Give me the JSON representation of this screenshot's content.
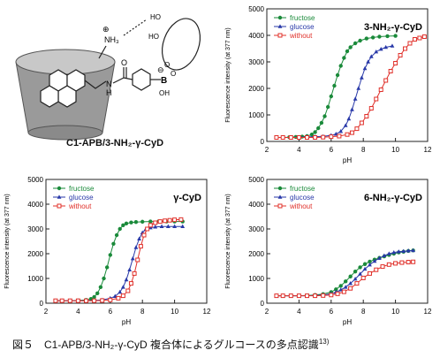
{
  "caption": {
    "text": "図５　C1-APB/3-NH₂-γ-CyD 複合体によるグルコースの多点認識",
    "ref": "13)"
  },
  "molecule": {
    "caption": "C1-APB/3-NH₂-γ-CyD",
    "labels": {
      "ammonium": "NH₃",
      "plus": "⊕",
      "minus": "⊖",
      "ho1": "HO",
      "ho2": "HO",
      "o1": "O",
      "o2": "O",
      "boron": "B",
      "oh": "OH",
      "nh": "N",
      "h": "H",
      "carbonyl_o": "O"
    }
  },
  "colors": {
    "fructose": "#1a8a3a",
    "glucose": "#2838a8",
    "without": "#e0302a"
  },
  "chart_data": [
    {
      "type": "line",
      "title": "3-NH₂-γ-CyD",
      "xlabel": "pH",
      "ylabel": "Fluorescence intensity (at 377 nm)",
      "xlim": [
        2,
        12
      ],
      "ylim": [
        0,
        5000
      ],
      "xticks": [
        2,
        4,
        6,
        8,
        10,
        12
      ],
      "yticks": [
        0,
        1000,
        2000,
        3000,
        4000,
        5000
      ],
      "legend": "top-left",
      "series": [
        {
          "name": "fructose",
          "marker": "circle",
          "x": [
            2.6,
            3.0,
            3.4,
            3.8,
            4.2,
            4.5,
            4.8,
            5.0,
            5.2,
            5.4,
            5.6,
            5.8,
            6.0,
            6.2,
            6.4,
            6.6,
            6.8,
            7.0,
            7.2,
            7.5,
            7.8,
            8.2,
            8.6,
            9.0,
            9.5,
            10.0
          ],
          "y": [
            150,
            150,
            160,
            170,
            180,
            200,
            260,
            350,
            500,
            700,
            950,
            1300,
            1700,
            2100,
            2500,
            2850,
            3150,
            3400,
            3550,
            3700,
            3800,
            3880,
            3920,
            3950,
            3970,
            3980
          ]
        },
        {
          "name": "glucose",
          "marker": "triangle",
          "x": [
            2.6,
            3.0,
            3.5,
            4.0,
            4.5,
            5.0,
            5.5,
            6.0,
            6.3,
            6.6,
            6.9,
            7.1,
            7.3,
            7.5,
            7.7,
            7.9,
            8.1,
            8.3,
            8.5,
            8.8,
            9.1,
            9.4,
            9.8
          ],
          "y": [
            150,
            150,
            150,
            160,
            170,
            180,
            190,
            230,
            280,
            380,
            600,
            850,
            1200,
            1600,
            2000,
            2400,
            2750,
            3000,
            3200,
            3380,
            3480,
            3550,
            3600
          ]
        },
        {
          "name": "without",
          "marker": "square",
          "x": [
            2.6,
            3.0,
            3.5,
            4.0,
            4.5,
            5.0,
            5.5,
            6.0,
            6.5,
            7.0,
            7.3,
            7.6,
            7.9,
            8.2,
            8.5,
            8.8,
            9.1,
            9.4,
            9.7,
            10.0,
            10.3,
            10.6,
            10.9,
            11.2,
            11.5,
            11.8
          ],
          "y": [
            150,
            150,
            150,
            150,
            150,
            150,
            160,
            180,
            200,
            260,
            330,
            480,
            700,
            950,
            1250,
            1600,
            1950,
            2300,
            2650,
            2950,
            3250,
            3500,
            3700,
            3850,
            3900,
            3950
          ]
        }
      ]
    },
    {
      "type": "line",
      "title": "γ-CyD",
      "xlabel": "pH",
      "ylabel": "Fluorescence intensity (at 377 nm)",
      "xlim": [
        2,
        12
      ],
      "ylim": [
        0,
        5000
      ],
      "xticks": [
        2,
        4,
        6,
        8,
        10,
        12
      ],
      "yticks": [
        0,
        1000,
        2000,
        3000,
        4000,
        5000
      ],
      "legend": "top-left",
      "series": [
        {
          "name": "fructose",
          "marker": "circle",
          "x": [
            2.6,
            3.0,
            3.5,
            4.0,
            4.5,
            4.8,
            5.0,
            5.2,
            5.4,
            5.6,
            5.8,
            6.0,
            6.2,
            6.4,
            6.6,
            6.8,
            7.0,
            7.3,
            7.6,
            8.0,
            8.5,
            9.0,
            9.5,
            10.0,
            10.5
          ],
          "y": [
            100,
            100,
            100,
            110,
            130,
            170,
            250,
            400,
            650,
            1000,
            1450,
            1950,
            2400,
            2750,
            3000,
            3150,
            3220,
            3260,
            3280,
            3290,
            3300,
            3300,
            3300,
            3300,
            3300
          ]
        },
        {
          "name": "glucose",
          "marker": "triangle",
          "x": [
            2.6,
            3.0,
            3.5,
            4.0,
            4.5,
            5.0,
            5.5,
            6.0,
            6.3,
            6.6,
            6.8,
            7.0,
            7.2,
            7.4,
            7.6,
            7.8,
            8.0,
            8.2,
            8.5,
            8.8,
            9.2,
            9.6,
            10.0,
            10.5
          ],
          "y": [
            100,
            100,
            100,
            100,
            100,
            110,
            130,
            200,
            280,
            450,
            650,
            950,
            1350,
            1800,
            2250,
            2600,
            2850,
            2980,
            3050,
            3080,
            3100,
            3100,
            3100,
            3100
          ]
        },
        {
          "name": "without",
          "marker": "square",
          "x": [
            2.6,
            3.0,
            3.5,
            4.0,
            4.5,
            5.0,
            5.5,
            6.0,
            6.5,
            6.8,
            7.1,
            7.3,
            7.5,
            7.7,
            7.9,
            8.1,
            8.3,
            8.5,
            8.8,
            9.1,
            9.4,
            9.7,
            10.0,
            10.4
          ],
          "y": [
            100,
            100,
            100,
            100,
            100,
            100,
            110,
            130,
            200,
            300,
            500,
            800,
            1200,
            1750,
            2300,
            2750,
            3000,
            3150,
            3250,
            3300,
            3330,
            3350,
            3370,
            3380
          ]
        }
      ]
    },
    {
      "type": "line",
      "title": "6-NH₂-γ-CyD",
      "xlabel": "pH",
      "ylabel": "Fluorescence intensity (at 377 nm)",
      "xlim": [
        2,
        12
      ],
      "ylim": [
        0,
        5000
      ],
      "xticks": [
        2,
        4,
        6,
        8,
        10,
        12
      ],
      "yticks": [
        0,
        1000,
        2000,
        3000,
        4000,
        5000
      ],
      "legend": "top-left",
      "series": [
        {
          "name": "fructose",
          "marker": "circle",
          "x": [
            2.6,
            3.0,
            3.5,
            4.0,
            4.5,
            5.0,
            5.5,
            6.0,
            6.3,
            6.6,
            6.9,
            7.2,
            7.5,
            7.8,
            8.1,
            8.4,
            8.7,
            9.0,
            9.3,
            9.6,
            9.9,
            10.2,
            10.5,
            10.8,
            11.1
          ],
          "y": [
            300,
            300,
            300,
            300,
            310,
            330,
            370,
            450,
            560,
            700,
            880,
            1080,
            1280,
            1450,
            1580,
            1680,
            1760,
            1830,
            1890,
            1950,
            2000,
            2050,
            2080,
            2110,
            2130
          ]
        },
        {
          "name": "glucose",
          "marker": "triangle",
          "x": [
            2.6,
            3.0,
            3.5,
            4.0,
            4.5,
            5.0,
            5.5,
            6.0,
            6.3,
            6.6,
            6.9,
            7.2,
            7.5,
            7.8,
            8.1,
            8.4,
            8.7,
            9.0,
            9.3,
            9.6,
            9.9,
            10.2,
            10.5,
            10.8,
            11.1
          ],
          "y": [
            300,
            300,
            300,
            300,
            300,
            310,
            330,
            380,
            450,
            540,
            650,
            800,
            980,
            1180,
            1380,
            1550,
            1700,
            1820,
            1920,
            2000,
            2050,
            2080,
            2100,
            2120,
            2130
          ]
        },
        {
          "name": "without",
          "marker": "square",
          "x": [
            2.6,
            3.0,
            3.5,
            4.0,
            4.5,
            5.0,
            5.5,
            6.0,
            6.4,
            6.8,
            7.2,
            7.6,
            8.0,
            8.4,
            8.8,
            9.2,
            9.6,
            10.0,
            10.4,
            10.8,
            11.1
          ],
          "y": [
            300,
            300,
            300,
            300,
            300,
            300,
            310,
            330,
            380,
            460,
            600,
            800,
            1020,
            1200,
            1350,
            1480,
            1560,
            1610,
            1640,
            1660,
            1670
          ]
        }
      ]
    }
  ]
}
